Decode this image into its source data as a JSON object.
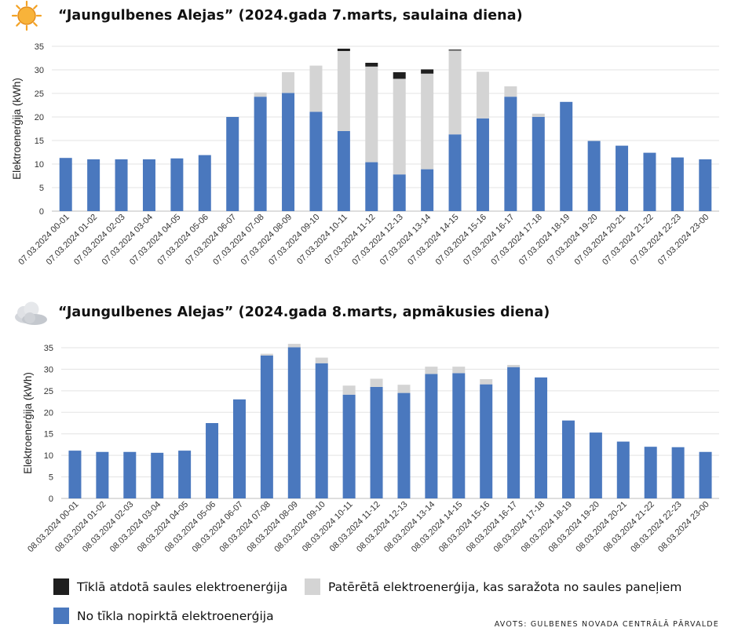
{
  "colors": {
    "grid_bought": "#4a78be",
    "solar_consumed": "#d4d4d4",
    "grid_exported": "#1f1f1f",
    "sun": "#f4a326",
    "cloud": "#c9ccd2"
  },
  "charts": [
    {
      "id": "march7",
      "title": "“Jaungulbenes Alejas” (2024.gada 7.marts, saulaina diena)",
      "weather_icon": "sun-icon"
    },
    {
      "id": "march8",
      "title": "“Jaungulbenes Alejas” (2024.gada 8.marts, apmākusies diena)",
      "weather_icon": "cloud-icon"
    }
  ],
  "legend": {
    "exported": "Tīklā atdotā saules elektroenerģija",
    "solar": "Patērētā elektroenerģija, kas saražota no saules paneļiem",
    "bought": "No tīkla nopirktā elektroenerģija"
  },
  "source": "AVOTS: GULBENES NOVADA CENTRĀLĀ PĀRVALDE",
  "chart_data": [
    {
      "type": "bar",
      "stacked": true,
      "title": "“Jaungulbenes Alejas” (2024.gada 7.marts, saulaina diena)",
      "ylabel": "Elektroenerģija (kWh)",
      "ylim": [
        0,
        35
      ],
      "yticks": [
        0,
        5,
        10,
        15,
        20,
        25,
        30,
        35
      ],
      "grid": true,
      "categories": [
        "07.03.2024 00-01",
        "07.03.2024 01-02",
        "07.03.2024 02-03",
        "07.03.2024 03-04",
        "07.03.2024 04-05",
        "07.03.2024 05-06",
        "07.03.2024 06-07",
        "07.03.2024 07-08",
        "07.03.2024 08-09",
        "07.03.2024 09-10",
        "07.03.2024 10-11",
        "07.03.2024 11-12",
        "07.03.2024 12-13",
        "07.03.2024 13-14",
        "07.03.2024 14-15",
        "07.03.2024 15-16",
        "07.03.2024 16-17",
        "07.03.2024 17-18",
        "07.03.2024 18-19",
        "07.03.2024 19-20",
        "07.03.2024 20-21",
        "07.03.2024 21-22",
        "07.03.2024 22-23",
        "07.03.2024 23-00"
      ],
      "series": [
        {
          "name": "No tīkla nopirktā elektroenerģija",
          "key": "bought",
          "values": [
            11.3,
            11.0,
            11.0,
            11.0,
            11.2,
            11.9,
            20.0,
            24.3,
            25.1,
            21.1,
            17.0,
            10.4,
            7.8,
            8.9,
            16.3,
            19.7,
            24.3,
            20.0,
            23.2,
            14.9,
            13.9,
            12.4,
            11.4,
            11.0
          ]
        },
        {
          "name": "Patērētā elektroenerģija, kas saražota no saules paneļiem",
          "key": "solar",
          "values": [
            0,
            0,
            0,
            0,
            0,
            0,
            0,
            0.9,
            4.4,
            9.8,
            17.0,
            20.3,
            20.3,
            20.3,
            17.8,
            9.9,
            2.2,
            0.7,
            0,
            0,
            0,
            0,
            0,
            0
          ]
        },
        {
          "name": "Tīklā atdotā saules elektroenerģija",
          "key": "exported",
          "values": [
            0,
            0,
            0,
            0,
            0,
            0,
            0,
            0,
            0,
            0,
            0.5,
            0.8,
            1.4,
            0.9,
            0.2,
            0,
            0,
            0,
            0,
            0,
            0,
            0,
            0,
            0
          ]
        }
      ]
    },
    {
      "type": "bar",
      "stacked": true,
      "title": "“Jaungulbenes Alejas” (2024.gada 8.marts, apmākusies diena)",
      "ylabel": "Elektroenerģija (kWh)",
      "ylim": [
        0,
        35
      ],
      "yticks": [
        0,
        5,
        10,
        15,
        20,
        25,
        30,
        35
      ],
      "grid": true,
      "categories": [
        "08.03.2024 00-01",
        "08.03.2024 01-02",
        "08.03.2024 02-03",
        "08.03.2024 03-04",
        "08.03.2024 04-05",
        "08.03.2024 05-06",
        "08.03.2024 06-07",
        "08.03.2024 07-08",
        "08.03.2024 08-09",
        "08.03.2024 09-10",
        "08.03.2024 10-11",
        "08.03.2024 11-12",
        "08.03.2024 12-13",
        "08.03.2024 13-14",
        "08.03.2024 14-15",
        "08.03.2024 15-16",
        "08.03.2024 16-17",
        "08.03.2024 17-18",
        "08.03.2024 18-19",
        "08.03.2024 19-20",
        "08.03.2024 20-21",
        "08.03.2024 21-22",
        "08.03.2024 22-23",
        "08.03.2024 23-00"
      ],
      "series": [
        {
          "name": "No tīkla nopirktā elektroenerģija",
          "key": "bought",
          "values": [
            11.1,
            10.8,
            10.8,
            10.6,
            11.1,
            17.5,
            23.0,
            33.2,
            35.1,
            31.4,
            24.1,
            25.9,
            24.5,
            28.9,
            29.1,
            26.5,
            30.5,
            28.1,
            18.1,
            15.3,
            13.2,
            12.0,
            11.9,
            10.8
          ]
        },
        {
          "name": "Patērētā elektroenerģija, kas saražota no saules paneļiem",
          "key": "solar",
          "values": [
            0,
            0,
            0,
            0,
            0,
            0,
            0,
            0.4,
            0.8,
            1.3,
            2.1,
            1.9,
            1.9,
            1.7,
            1.5,
            1.2,
            0.5,
            0,
            0,
            0,
            0,
            0,
            0,
            0
          ]
        },
        {
          "name": "Tīklā atdotā saules elektroenerģija",
          "key": "exported",
          "values": [
            0,
            0,
            0,
            0,
            0,
            0,
            0,
            0,
            0,
            0,
            0,
            0,
            0,
            0,
            0,
            0,
            0,
            0,
            0,
            0,
            0,
            0,
            0,
            0
          ]
        }
      ]
    }
  ]
}
